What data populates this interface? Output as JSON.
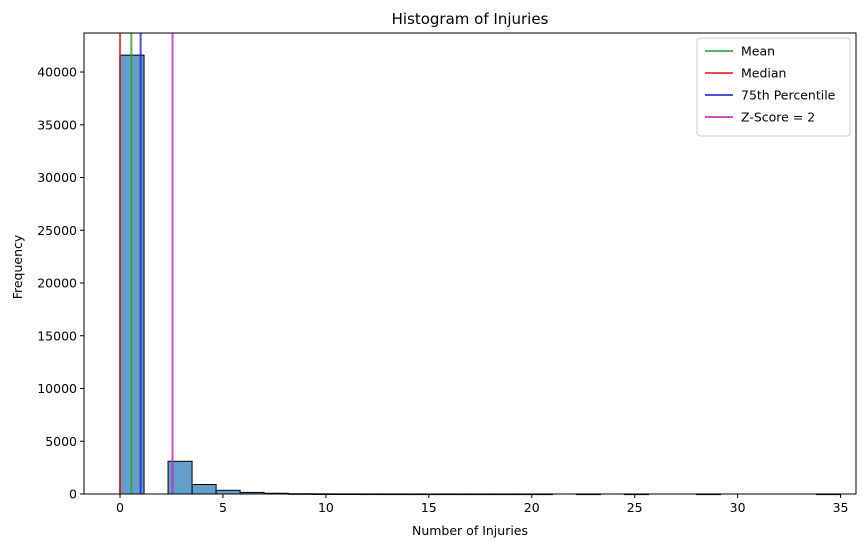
{
  "chart_data": {
    "type": "bar",
    "title": "Histogram of Injuries",
    "xlabel": "Number of Injuries",
    "ylabel": "Frequency",
    "xlim": [
      -1.75,
      35.75
    ],
    "ylim": [
      0,
      43700
    ],
    "x_ticks": [
      0,
      5,
      10,
      15,
      20,
      25,
      30,
      35
    ],
    "y_ticks": [
      0,
      5000,
      10000,
      15000,
      20000,
      25000,
      30000,
      35000,
      40000
    ],
    "bar_color": "#1f77b4",
    "bins": [
      {
        "x0": 0.0,
        "x1": 1.167,
        "value": 41600
      },
      {
        "x0": 1.167,
        "x1": 2.333,
        "value": 0
      },
      {
        "x0": 2.333,
        "x1": 3.5,
        "value": 3100
      },
      {
        "x0": 3.5,
        "x1": 4.667,
        "value": 900
      },
      {
        "x0": 4.667,
        "x1": 5.833,
        "value": 350
      },
      {
        "x0": 5.833,
        "x1": 7.0,
        "value": 150
      },
      {
        "x0": 7.0,
        "x1": 8.167,
        "value": 70
      },
      {
        "x0": 8.167,
        "x1": 9.333,
        "value": 25
      },
      {
        "x0": 9.333,
        "x1": 10.5,
        "value": 15
      },
      {
        "x0": 10.5,
        "x1": 11.667,
        "value": 8
      },
      {
        "x0": 11.667,
        "x1": 12.833,
        "value": 5
      },
      {
        "x0": 12.833,
        "x1": 14.0,
        "value": 3
      },
      {
        "x0": 14.0,
        "x1": 15.167,
        "value": 2
      },
      {
        "x0": 15.167,
        "x1": 16.333,
        "value": 2
      },
      {
        "x0": 16.333,
        "x1": 17.5,
        "value": 1
      },
      {
        "x0": 17.5,
        "x1": 18.667,
        "value": 1
      },
      {
        "x0": 18.667,
        "x1": 19.833,
        "value": 1
      },
      {
        "x0": 19.833,
        "x1": 21.0,
        "value": 1
      },
      {
        "x0": 21.0,
        "x1": 22.167,
        "value": 0
      },
      {
        "x0": 22.167,
        "x1": 23.333,
        "value": 1
      },
      {
        "x0": 23.333,
        "x1": 24.5,
        "value": 0
      },
      {
        "x0": 24.5,
        "x1": 25.667,
        "value": 1
      },
      {
        "x0": 25.667,
        "x1": 26.833,
        "value": 0
      },
      {
        "x0": 26.833,
        "x1": 28.0,
        "value": 0
      },
      {
        "x0": 28.0,
        "x1": 29.167,
        "value": 1
      },
      {
        "x0": 29.167,
        "x1": 30.333,
        "value": 0
      },
      {
        "x0": 30.333,
        "x1": 31.5,
        "value": 0
      },
      {
        "x0": 31.5,
        "x1": 32.667,
        "value": 0
      },
      {
        "x0": 32.667,
        "x1": 33.833,
        "value": 0
      },
      {
        "x0": 33.833,
        "x1": 35.0,
        "value": 1
      }
    ],
    "reference_lines": [
      {
        "name": "Mean",
        "x": 0.55,
        "color": "#2ca02c"
      },
      {
        "name": "Median",
        "x": 0.0,
        "color": "#e8201c"
      },
      {
        "name": "75th Percentile",
        "x": 1.0,
        "color": "#1f1fe0"
      },
      {
        "name": "Z-Score = 2",
        "x": 2.55,
        "color": "#c620c6"
      }
    ],
    "legend_position": "top-right"
  }
}
